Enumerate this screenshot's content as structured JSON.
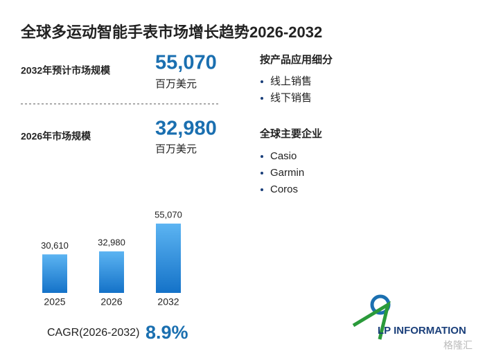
{
  "title": "全球多运动智能手表市场增长趋势2026-2032",
  "stats": [
    {
      "label": "2032年预计市场规模",
      "value": "55,070",
      "unit": "百万美元"
    },
    {
      "label": "2026年市场规模",
      "value": "32,980",
      "unit": "百万美元"
    }
  ],
  "segments": {
    "title": "按产品应用细分",
    "items": [
      "线上销售",
      "线下销售"
    ]
  },
  "companies": {
    "title": "全球主要企业",
    "items": [
      "Casio",
      "Garmin",
      "Coros"
    ]
  },
  "chart_data": {
    "type": "bar",
    "categories": [
      "2025",
      "2026",
      "2032"
    ],
    "values": [
      30610,
      32980,
      55070
    ],
    "value_labels": [
      "30,610",
      "32,980",
      "55,070"
    ],
    "color": "#1a7fd4"
  },
  "cagr": {
    "label": "CAGR(2026-2032)",
    "value": "8.9%"
  },
  "logo": "LP INFORMATION",
  "watermark": "格隆汇"
}
